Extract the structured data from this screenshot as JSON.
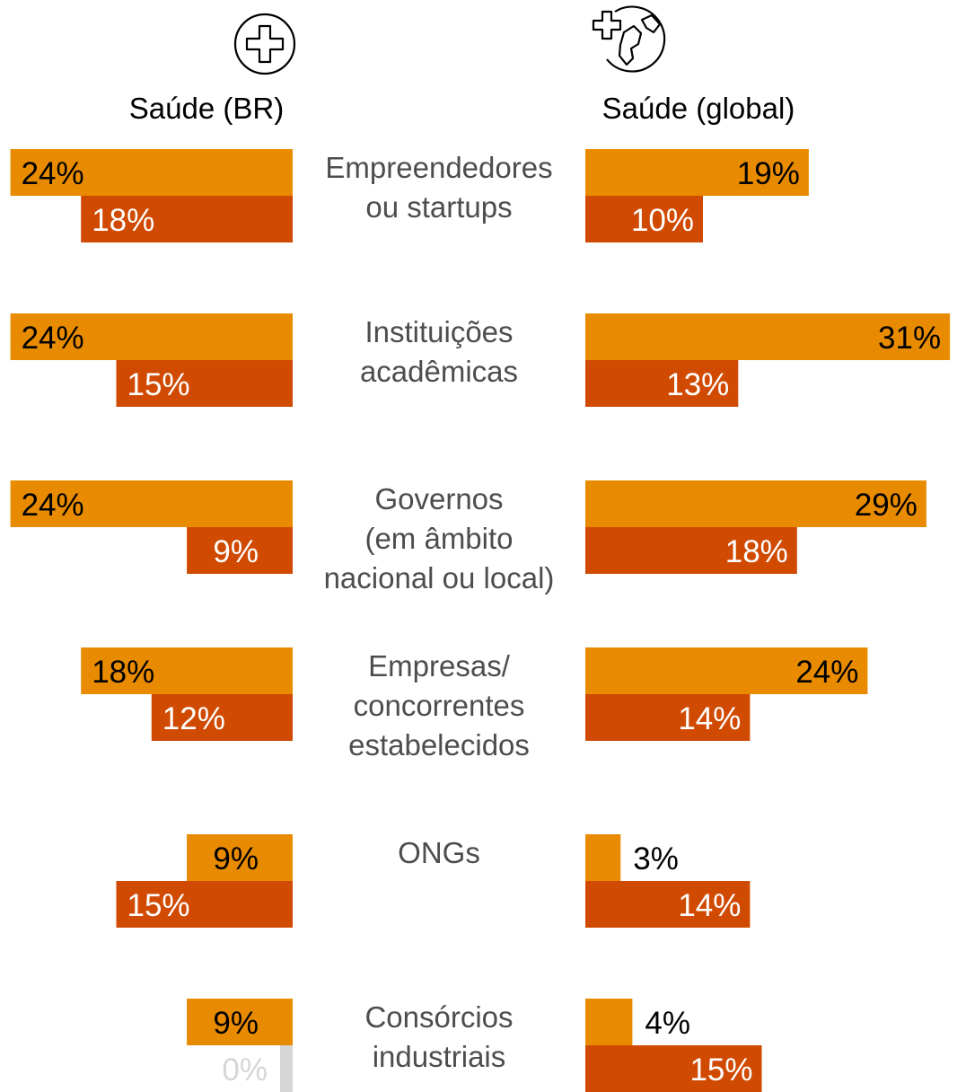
{
  "chart_data": {
    "type": "bar",
    "layout": "mirrored-horizontal",
    "panels": [
      {
        "title": "Saúde (BR)",
        "icon": "health-cross-icon"
      },
      {
        "title": "Saúde (global)",
        "icon": "health-globe-icon"
      }
    ],
    "categories": [
      [
        "Empreendedores",
        "ou startups"
      ],
      [
        "Instituições",
        "acadêmicas"
      ],
      [
        "Governos",
        "(em âmbito",
        "nacional ou local)"
      ],
      [
        "Empresas/",
        "concorrentes",
        "estabelecidos"
      ],
      [
        "ONGs"
      ],
      [
        "Consórcios",
        "industriais"
      ]
    ],
    "series": [
      {
        "color": "#e88b00",
        "br": [
          24,
          24,
          24,
          18,
          9,
          9
        ],
        "global": [
          19,
          31,
          29,
          24,
          3,
          4
        ]
      },
      {
        "color": "#d04a02",
        "br": [
          18,
          15,
          9,
          12,
          15,
          0
        ],
        "global": [
          10,
          13,
          18,
          14,
          14,
          15
        ]
      }
    ],
    "value_format": "{v}%",
    "colors": {
      "zero_bar": "#d6d6d6",
      "zero_label": "#d6d6d6"
    }
  }
}
